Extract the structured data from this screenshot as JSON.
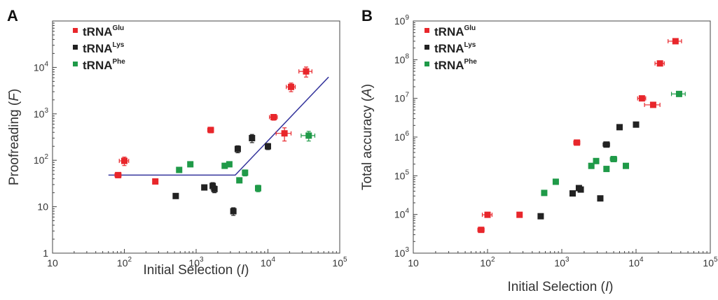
{
  "chart_data": [
    {
      "type": "scatter",
      "panel": "A",
      "title": "",
      "xlabel_main": "Initial Selection (",
      "xlabel_var": "I",
      "xlabel_end": ")",
      "ylabel_main": "Proofreading (",
      "ylabel_var": "F",
      "ylabel_end": ")",
      "x_scale": "log",
      "y_scale": "log",
      "xlim": [
        10,
        100000
      ],
      "ylim": [
        1,
        100000
      ],
      "x_ticks": [
        {
          "value": 10,
          "base": "10",
          "exp": ""
        },
        {
          "value": 100,
          "base": "10",
          "exp": "2"
        },
        {
          "value": 1000,
          "base": "10",
          "exp": "3"
        },
        {
          "value": 10000,
          "base": "10",
          "exp": "4"
        },
        {
          "value": 100000,
          "base": "10",
          "exp": "5"
        }
      ],
      "y_ticks": [
        {
          "value": 1,
          "base": "1",
          "exp": ""
        },
        {
          "value": 10,
          "base": "10",
          "exp": ""
        },
        {
          "value": 100,
          "base": "10",
          "exp": "2"
        },
        {
          "value": 1000,
          "base": "10",
          "exp": "3"
        },
        {
          "value": 10000,
          "base": "10",
          "exp": "4"
        }
      ],
      "grid": false,
      "legend_position": "top-left",
      "series": [
        {
          "base": "tRNA",
          "sup": "Glu",
          "color": "#e8262b",
          "points": [
            {
              "x": 82,
              "y": 48,
              "xerr": 8,
              "yerr": 6
            },
            {
              "x": 100,
              "y": 97,
              "xerr": 15,
              "yerr": 20
            },
            {
              "x": 270,
              "y": 35,
              "xerr": 0,
              "yerr": 0
            },
            {
              "x": 1600,
              "y": 450,
              "xerr": 150,
              "yerr": 60
            },
            {
              "x": 12000,
              "y": 850,
              "xerr": 1500,
              "yerr": 120
            },
            {
              "x": 17000,
              "y": 380,
              "xerr": 4000,
              "yerr": 120
            },
            {
              "x": 21000,
              "y": 3800,
              "xerr": 3000,
              "yerr": 800
            },
            {
              "x": 34000,
              "y": 8200,
              "xerr": 7000,
              "yerr": 2000
            }
          ]
        },
        {
          "base": "tRNA",
          "sup": "Lys",
          "color": "#222222",
          "points": [
            {
              "x": 520,
              "y": 17,
              "xerr": 0,
              "yerr": 2
            },
            {
              "x": 1300,
              "y": 26,
              "xerr": 0,
              "yerr": 3
            },
            {
              "x": 1700,
              "y": 28,
              "xerr": 0,
              "yerr": 5
            },
            {
              "x": 1800,
              "y": 24,
              "xerr": 0,
              "yerr": 4
            },
            {
              "x": 3300,
              "y": 8,
              "xerr": 0,
              "yerr": 1.5
            },
            {
              "x": 3800,
              "y": 175,
              "xerr": 0,
              "yerr": 30
            },
            {
              "x": 6000,
              "y": 300,
              "xerr": 0,
              "yerr": 60
            },
            {
              "x": 10000,
              "y": 200,
              "xerr": 700,
              "yerr": 30
            }
          ]
        },
        {
          "base": "tRNA",
          "sup": "Phe",
          "color": "#1f9a48",
          "points": [
            {
              "x": 580,
              "y": 62,
              "xerr": 0,
              "yerr": 0
            },
            {
              "x": 830,
              "y": 82,
              "xerr": 0,
              "yerr": 8
            },
            {
              "x": 2500,
              "y": 76,
              "xerr": 200,
              "yerr": 8
            },
            {
              "x": 2900,
              "y": 82,
              "xerr": 200,
              "yerr": 8
            },
            {
              "x": 4000,
              "y": 37,
              "xerr": 0,
              "yerr": 4
            },
            {
              "x": 4800,
              "y": 54,
              "xerr": 0,
              "yerr": 8
            },
            {
              "x": 7300,
              "y": 25,
              "xerr": 0,
              "yerr": 4
            },
            {
              "x": 37000,
              "y": 340,
              "xerr": 8000,
              "yerr": 80
            }
          ]
        }
      ],
      "fit_line": {
        "color": "#34349c",
        "points": [
          [
            60,
            48
          ],
          [
            3500,
            48
          ],
          [
            70000,
            6200
          ]
        ]
      }
    },
    {
      "type": "scatter",
      "panel": "B",
      "title": "",
      "xlabel_main": "Initial Selection (",
      "xlabel_var": "I",
      "xlabel_end": ")",
      "ylabel_main": "Total accuracy (",
      "ylabel_var": "A",
      "ylabel_end": ")",
      "x_scale": "log",
      "y_scale": "log",
      "xlim": [
        10,
        100000
      ],
      "ylim": [
        1000,
        1000000000
      ],
      "x_ticks": [
        {
          "value": 10,
          "base": "10",
          "exp": ""
        },
        {
          "value": 100,
          "base": "10",
          "exp": "2"
        },
        {
          "value": 1000,
          "base": "10",
          "exp": "3"
        },
        {
          "value": 10000,
          "base": "10",
          "exp": "4"
        },
        {
          "value": 100000,
          "base": "10",
          "exp": "5"
        }
      ],
      "y_ticks": [
        {
          "value": 1000,
          "base": "10",
          "exp": "3"
        },
        {
          "value": 10000,
          "base": "10",
          "exp": "4"
        },
        {
          "value": 100000,
          "base": "10",
          "exp": "5"
        },
        {
          "value": 1000000,
          "base": "10",
          "exp": "6"
        },
        {
          "value": 10000000,
          "base": "10",
          "exp": "7"
        },
        {
          "value": 100000000,
          "base": "10",
          "exp": "8"
        },
        {
          "value": 1000000000,
          "base": "10",
          "exp": "9"
        }
      ],
      "grid": false,
      "legend_position": "top-left",
      "series": [
        {
          "base": "tRNA",
          "sup": "Glu",
          "color": "#e8262b",
          "points": [
            {
              "x": 82,
              "y": 4000,
              "xerr": 8,
              "yerr": 0
            },
            {
              "x": 100,
              "y": 9800,
              "xerr": 15,
              "yerr": 0
            },
            {
              "x": 270,
              "y": 9800,
              "xerr": 0,
              "yerr": 0
            },
            {
              "x": 1600,
              "y": 720000,
              "xerr": 150,
              "yerr": 0
            },
            {
              "x": 12000,
              "y": 10000000,
              "xerr": 1500,
              "yerr": 0
            },
            {
              "x": 17000,
              "y": 6800000,
              "xerr": 4000,
              "yerr": 0
            },
            {
              "x": 21000,
              "y": 80000000,
              "xerr": 3000,
              "yerr": 0
            },
            {
              "x": 34000,
              "y": 300000000,
              "xerr": 7000,
              "yerr": 0
            }
          ]
        },
        {
          "base": "tRNA",
          "sup": "Lys",
          "color": "#222222",
          "points": [
            {
              "x": 520,
              "y": 9000,
              "xerr": 0,
              "yerr": 0
            },
            {
              "x": 1400,
              "y": 35000,
              "xerr": 0,
              "yerr": 0
            },
            {
              "x": 1700,
              "y": 48000,
              "xerr": 0,
              "yerr": 0
            },
            {
              "x": 1800,
              "y": 44000,
              "xerr": 0,
              "yerr": 0
            },
            {
              "x": 3300,
              "y": 26000,
              "xerr": 0,
              "yerr": 0
            },
            {
              "x": 4000,
              "y": 640000,
              "xerr": 400,
              "yerr": 0
            },
            {
              "x": 6000,
              "y": 1800000,
              "xerr": 0,
              "yerr": 0
            },
            {
              "x": 10000,
              "y": 2100000,
              "xerr": 700,
              "yerr": 0
            }
          ]
        },
        {
          "base": "tRNA",
          "sup": "Phe",
          "color": "#1f9a48",
          "points": [
            {
              "x": 580,
              "y": 36000,
              "xerr": 0,
              "yerr": 0
            },
            {
              "x": 830,
              "y": 70000,
              "xerr": 0,
              "yerr": 0
            },
            {
              "x": 2500,
              "y": 180000,
              "xerr": 0,
              "yerr": 0
            },
            {
              "x": 2900,
              "y": 240000,
              "xerr": 0,
              "yerr": 0
            },
            {
              "x": 4000,
              "y": 150000,
              "xerr": 0,
              "yerr": 0
            },
            {
              "x": 5000,
              "y": 270000,
              "xerr": 500,
              "yerr": 0
            },
            {
              "x": 7300,
              "y": 180000,
              "xerr": 0,
              "yerr": 0
            },
            {
              "x": 38000,
              "y": 13000000,
              "xerr": 8000,
              "yerr": 0
            }
          ]
        }
      ]
    }
  ]
}
